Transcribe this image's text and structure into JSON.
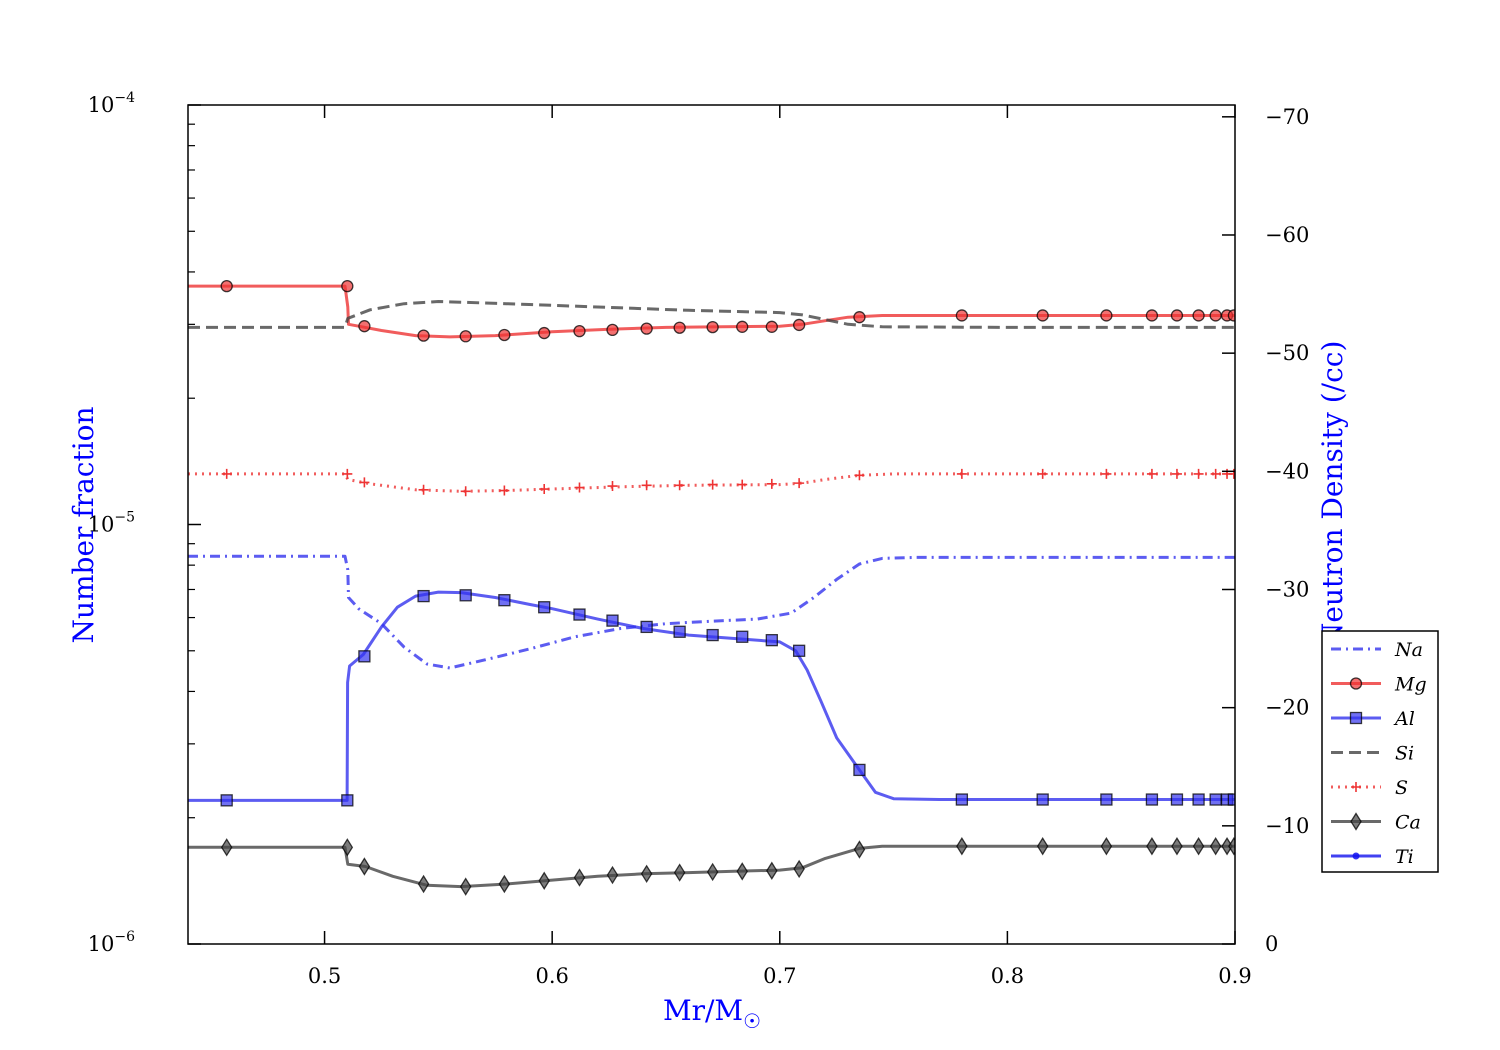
{
  "chart_data": {
    "type": "line",
    "xlabel": "Mr/M",
    "xlabel_sub": "☉",
    "ylabel": "Number fraction",
    "y2label": "Log Neutron Density (/cc)",
    "xlim": [
      0.44,
      0.9
    ],
    "ylim": [
      1e-06,
      0.0001
    ],
    "yscale": "log",
    "y2lim": [
      0,
      -71
    ],
    "x_ticks": [
      "0.5",
      "0.6",
      "0.7",
      "0.8",
      "0.9"
    ],
    "y_ticks": [
      {
        "base": "10",
        "exp": "−4"
      },
      {
        "base": "10",
        "exp": "−5"
      },
      {
        "base": "10",
        "exp": "−6"
      }
    ],
    "y2_ticks": [
      "−70",
      "−60",
      "−50",
      "−40",
      "−30",
      "−20",
      "−10",
      "0"
    ],
    "legend_position": "right",
    "series": [
      {
        "name": "Na",
        "color": "#3333ee",
        "dash": "dashdot",
        "marker": "none",
        "x": [
          0.44,
          0.509,
          0.5102,
          0.5105,
          0.515,
          0.525,
          0.535,
          0.545,
          0.555,
          0.57,
          0.59,
          0.61,
          0.63,
          0.65,
          0.67,
          0.69,
          0.705,
          0.715,
          0.725,
          0.735,
          0.745,
          0.76,
          0.8,
          0.85,
          0.9
        ],
        "y": [
          8.4e-06,
          8.4e-06,
          7.8e-06,
          6.7e-06,
          6.3e-06,
          5.8e-06,
          5.1e-06,
          4.65e-06,
          4.55e-06,
          4.75e-06,
          5.05e-06,
          5.4e-06,
          5.65e-06,
          5.8e-06,
          5.88e-06,
          5.95e-06,
          6.15e-06,
          6.7e-06,
          7.4e-06,
          8.05e-06,
          8.3e-06,
          8.35e-06,
          8.35e-06,
          8.35e-06,
          8.35e-06
        ]
      },
      {
        "name": "Mg",
        "color": "#ee3333",
        "dash": "solid",
        "marker": "circle",
        "x": [
          0.44,
          0.509,
          0.5102,
          0.5105,
          0.515,
          0.525,
          0.54,
          0.555,
          0.575,
          0.6,
          0.625,
          0.65,
          0.675,
          0.7,
          0.71,
          0.72,
          0.73,
          0.745,
          0.8,
          0.9
        ],
        "y": [
          3.7e-05,
          3.7e-05,
          3.3e-05,
          3e-05,
          2.97e-05,
          2.9e-05,
          2.82e-05,
          2.8e-05,
          2.82e-05,
          2.88e-05,
          2.92e-05,
          2.95e-05,
          2.96e-05,
          2.97e-05,
          3e-05,
          3.06e-05,
          3.12e-05,
          3.15e-05,
          3.15e-05,
          3.15e-05
        ],
        "markers_x": [
          0.457,
          0.51,
          0.5175,
          0.5435,
          0.562,
          0.579,
          0.5965,
          0.612,
          0.6265,
          0.6415,
          0.656,
          0.6705,
          0.6835,
          0.6965,
          0.7085,
          0.735,
          0.78,
          0.8155,
          0.8435,
          0.8635,
          0.8745,
          0.884,
          0.8915,
          0.8965,
          0.8995
        ],
        "markers_y": [
          3.7e-05,
          3.7e-05,
          2.97e-05,
          2.82e-05,
          2.81e-05,
          2.83e-05,
          2.86e-05,
          2.89e-05,
          2.91e-05,
          2.93e-05,
          2.945e-05,
          2.955e-05,
          2.96e-05,
          2.96e-05,
          2.99e-05,
          3.12e-05,
          3.15e-05,
          3.15e-05,
          3.15e-05,
          3.15e-05,
          3.15e-05,
          3.15e-05,
          3.15e-05,
          3.15e-05,
          3.15e-05
        ]
      },
      {
        "name": "Al",
        "color": "#3333ee",
        "dash": "solid",
        "marker": "square",
        "x": [
          0.44,
          0.5099,
          0.5101,
          0.511,
          0.517,
          0.525,
          0.532,
          0.54,
          0.55,
          0.56,
          0.575,
          0.59,
          0.6,
          0.62,
          0.64,
          0.66,
          0.68,
          0.7,
          0.707,
          0.712,
          0.718,
          0.725,
          0.735,
          0.742,
          0.75,
          0.77,
          0.9
        ],
        "y": [
          2.2e-06,
          2.2e-06,
          4.2e-06,
          4.6e-06,
          4.9e-06,
          5.7e-06,
          6.35e-06,
          6.75e-06,
          6.9e-06,
          6.88e-06,
          6.7e-06,
          6.45e-06,
          6.3e-06,
          5.95e-06,
          5.65e-06,
          5.45e-06,
          5.35e-06,
          5.25e-06,
          5e-06,
          4.5e-06,
          3.8e-06,
          3.1e-06,
          2.6e-06,
          2.3e-06,
          2.22e-06,
          2.21e-06,
          2.21e-06
        ],
        "markers_x": [
          0.457,
          0.51,
          0.5175,
          0.5435,
          0.562,
          0.579,
          0.5965,
          0.612,
          0.6265,
          0.6415,
          0.656,
          0.6705,
          0.6835,
          0.6965,
          0.7085,
          0.735,
          0.78,
          0.8155,
          0.8435,
          0.8635,
          0.8745,
          0.884,
          0.8915,
          0.8965,
          0.8995
        ],
        "markers_y": [
          2.2e-06,
          2.2e-06,
          4.85e-06,
          6.75e-06,
          6.78e-06,
          6.6e-06,
          6.35e-06,
          6.1e-06,
          5.9e-06,
          5.7e-06,
          5.55e-06,
          5.45e-06,
          5.4e-06,
          5.3e-06,
          5e-06,
          2.6e-06,
          2.21e-06,
          2.21e-06,
          2.21e-06,
          2.21e-06,
          2.21e-06,
          2.21e-06,
          2.21e-06,
          2.21e-06,
          2.21e-06
        ]
      },
      {
        "name": "Si",
        "color": "#444444",
        "dash": "dashed",
        "marker": "none",
        "x": [
          0.44,
          0.509,
          0.5102,
          0.52,
          0.535,
          0.55,
          0.58,
          0.62,
          0.66,
          0.7,
          0.71,
          0.72,
          0.73,
          0.745,
          0.8,
          0.9
        ],
        "y": [
          2.95e-05,
          2.95e-05,
          3.1e-05,
          3.25e-05,
          3.36e-05,
          3.4e-05,
          3.36e-05,
          3.3e-05,
          3.24e-05,
          3.2e-05,
          3.16e-05,
          3.08e-05,
          3e-05,
          2.96e-05,
          2.95e-05,
          2.95e-05
        ]
      },
      {
        "name": "S",
        "color": "#ee3333",
        "dash": "dotted",
        "marker": "plus",
        "x": [
          0.44,
          0.509,
          0.5102,
          0.52,
          0.54,
          0.56,
          0.58,
          0.6,
          0.63,
          0.66,
          0.7,
          0.71,
          0.72,
          0.735,
          0.75,
          0.8,
          0.9
        ],
        "y": [
          1.32e-05,
          1.32e-05,
          1.28e-05,
          1.25e-05,
          1.21e-05,
          1.2e-05,
          1.205e-05,
          1.215e-05,
          1.23e-05,
          1.24e-05,
          1.245e-05,
          1.255e-05,
          1.28e-05,
          1.31e-05,
          1.32e-05,
          1.32e-05,
          1.32e-05
        ],
        "markers_x": [
          0.457,
          0.51,
          0.5175,
          0.5435,
          0.562,
          0.579,
          0.5965,
          0.612,
          0.6265,
          0.6415,
          0.656,
          0.6705,
          0.6835,
          0.6965,
          0.7085,
          0.735,
          0.78,
          0.8155,
          0.8435,
          0.8635,
          0.8745,
          0.884,
          0.8915,
          0.8965,
          0.8995
        ],
        "markers_y": [
          1.32e-05,
          1.32e-05,
          1.26e-05,
          1.21e-05,
          1.2e-05,
          1.205e-05,
          1.215e-05,
          1.225e-05,
          1.235e-05,
          1.24e-05,
          1.24e-05,
          1.245e-05,
          1.245e-05,
          1.25e-05,
          1.255e-05,
          1.31e-05,
          1.32e-05,
          1.32e-05,
          1.32e-05,
          1.32e-05,
          1.32e-05,
          1.32e-05,
          1.32e-05,
          1.32e-05,
          1.32e-05
        ]
      },
      {
        "name": "Ca",
        "color": "#444444",
        "dash": "solid",
        "marker": "diamond",
        "x": [
          0.44,
          0.509,
          0.5102,
          0.518,
          0.53,
          0.545,
          0.56,
          0.58,
          0.6,
          0.62,
          0.64,
          0.66,
          0.68,
          0.7,
          0.71,
          0.72,
          0.735,
          0.745,
          0.8,
          0.9
        ],
        "y": [
          1.7e-06,
          1.7e-06,
          1.55e-06,
          1.53e-06,
          1.45e-06,
          1.38e-06,
          1.37e-06,
          1.39e-06,
          1.42e-06,
          1.45e-06,
          1.47e-06,
          1.48e-06,
          1.49e-06,
          1.5e-06,
          1.52e-06,
          1.6e-06,
          1.69e-06,
          1.71e-06,
          1.71e-06,
          1.71e-06
        ],
        "markers_x": [
          0.457,
          0.51,
          0.5175,
          0.5435,
          0.562,
          0.579,
          0.5965,
          0.612,
          0.6265,
          0.6415,
          0.656,
          0.6705,
          0.6835,
          0.6965,
          0.7085,
          0.735,
          0.78,
          0.8155,
          0.8435,
          0.8635,
          0.8745,
          0.884,
          0.8915,
          0.8965,
          0.8995
        ],
        "markers_y": [
          1.7e-06,
          1.7e-06,
          1.53e-06,
          1.39e-06,
          1.37e-06,
          1.39e-06,
          1.415e-06,
          1.44e-06,
          1.46e-06,
          1.47e-06,
          1.48e-06,
          1.485e-06,
          1.49e-06,
          1.495e-06,
          1.51e-06,
          1.68e-06,
          1.71e-06,
          1.71e-06,
          1.71e-06,
          1.71e-06,
          1.71e-06,
          1.71e-06,
          1.71e-06,
          1.71e-06,
          1.71e-06
        ]
      },
      {
        "name": "Ti",
        "color": "#1111ee",
        "dash": "solid",
        "marker": "dot",
        "x": [],
        "y": []
      }
    ]
  }
}
